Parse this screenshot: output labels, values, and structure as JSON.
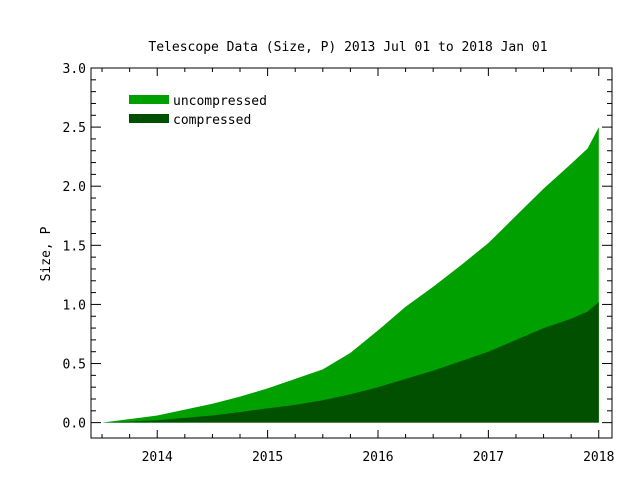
{
  "chart_data": {
    "type": "area",
    "title": "Telescope Data (Size, P)  2013 Jul 01 to 2018 Jan 01",
    "xlabel": "",
    "ylabel": "Size, P",
    "xlim": [
      2013.4,
      2018.12
    ],
    "ylim": [
      -0.13,
      3.0
    ],
    "x_ticks": [
      2014,
      2015,
      2016,
      2017,
      2018
    ],
    "x_tick_labels": [
      "2014",
      "2015",
      "2016",
      "2017",
      "2018"
    ],
    "y_ticks": [
      0.0,
      0.5,
      1.0,
      1.5,
      2.0,
      2.5,
      3.0
    ],
    "y_tick_labels": [
      "0.0",
      "0.5",
      "1.0",
      "1.5",
      "2.0",
      "2.5",
      "3.0"
    ],
    "grid": false,
    "legend_position": "top-left",
    "x": [
      2013.5,
      2013.75,
      2014.0,
      2014.25,
      2014.5,
      2014.75,
      2015.0,
      2015.25,
      2015.5,
      2015.75,
      2016.0,
      2016.25,
      2016.5,
      2016.75,
      2017.0,
      2017.25,
      2017.5,
      2017.75,
      2017.9,
      2018.0
    ],
    "series": [
      {
        "name": "uncompressed",
        "color": "#00a000",
        "values": [
          0.0,
          0.03,
          0.06,
          0.11,
          0.16,
          0.22,
          0.29,
          0.37,
          0.45,
          0.59,
          0.78,
          0.98,
          1.15,
          1.33,
          1.52,
          1.75,
          1.98,
          2.19,
          2.32,
          2.5
        ]
      },
      {
        "name": "compressed",
        "color": "#005000",
        "values": [
          0.0,
          0.01,
          0.02,
          0.04,
          0.06,
          0.09,
          0.12,
          0.15,
          0.19,
          0.24,
          0.3,
          0.37,
          0.44,
          0.52,
          0.6,
          0.7,
          0.8,
          0.88,
          0.94,
          1.02
        ]
      }
    ]
  }
}
